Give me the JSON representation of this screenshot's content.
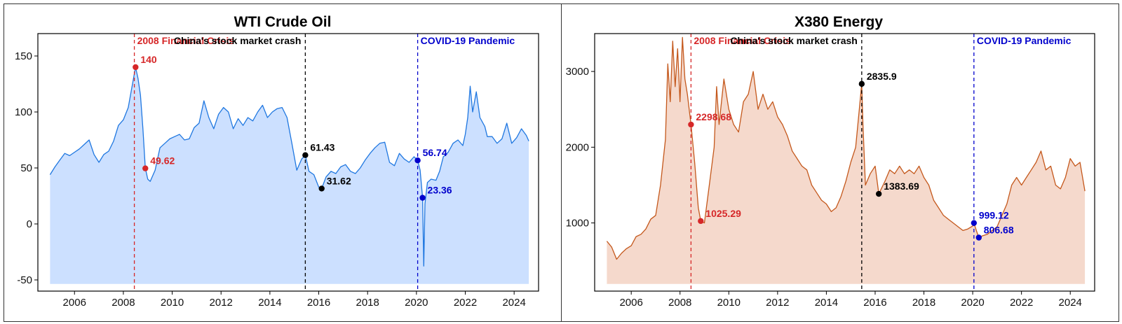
{
  "chart_data": [
    {
      "type": "area",
      "title": "WTI Crude Oil",
      "xlabel": "",
      "ylabel": "",
      "xlim": [
        2004.5,
        2025.0
      ],
      "ylim": [
        -60,
        170
      ],
      "xticks": [
        2006,
        2008,
        2010,
        2012,
        2014,
        2016,
        2018,
        2020,
        2022,
        2024
      ],
      "xtick_labels": [
        "2006",
        "2008",
        "2010",
        "2012",
        "2014",
        "2016",
        "2018",
        "2020",
        "2022",
        "2024"
      ],
      "yticks": [
        -50,
        0,
        50,
        100,
        150
      ],
      "ytick_labels": [
        "-50",
        "0",
        "50",
        "100",
        "150"
      ],
      "line_color": "#1f77e0",
      "fill_color": "#cce0ff",
      "series": [
        {
          "name": "WTI Crude Oil",
          "points": [
            [
              2005.0,
              44
            ],
            [
              2005.2,
              51
            ],
            [
              2005.4,
              57
            ],
            [
              2005.6,
              63
            ],
            [
              2005.8,
              61
            ],
            [
              2006.0,
              64
            ],
            [
              2006.2,
              67
            ],
            [
              2006.4,
              71
            ],
            [
              2006.6,
              75
            ],
            [
              2006.8,
              62
            ],
            [
              2007.0,
              55
            ],
            [
              2007.2,
              62
            ],
            [
              2007.4,
              65
            ],
            [
              2007.6,
              74
            ],
            [
              2007.8,
              88
            ],
            [
              2008.0,
              93
            ],
            [
              2008.2,
              104
            ],
            [
              2008.4,
              128
            ],
            [
              2008.5,
              140
            ],
            [
              2008.6,
              130
            ],
            [
              2008.7,
              115
            ],
            [
              2008.8,
              85
            ],
            [
              2008.9,
              50
            ],
            [
              2009.0,
              40
            ],
            [
              2009.1,
              38
            ],
            [
              2009.3,
              48
            ],
            [
              2009.5,
              68
            ],
            [
              2009.7,
              72
            ],
            [
              2009.9,
              76
            ],
            [
              2010.1,
              78
            ],
            [
              2010.3,
              80
            ],
            [
              2010.5,
              75
            ],
            [
              2010.7,
              76
            ],
            [
              2010.9,
              86
            ],
            [
              2011.1,
              90
            ],
            [
              2011.3,
              110
            ],
            [
              2011.5,
              95
            ],
            [
              2011.7,
              85
            ],
            [
              2011.9,
              98
            ],
            [
              2012.1,
              104
            ],
            [
              2012.3,
              100
            ],
            [
              2012.5,
              85
            ],
            [
              2012.7,
              94
            ],
            [
              2012.9,
              88
            ],
            [
              2013.1,
              95
            ],
            [
              2013.3,
              92
            ],
            [
              2013.5,
              100
            ],
            [
              2013.7,
              106
            ],
            [
              2013.9,
              95
            ],
            [
              2014.1,
              100
            ],
            [
              2014.3,
              103
            ],
            [
              2014.5,
              104
            ],
            [
              2014.7,
              95
            ],
            [
              2014.9,
              72
            ],
            [
              2015.1,
              48
            ],
            [
              2015.3,
              58
            ],
            [
              2015.45,
              61.43
            ],
            [
              2015.6,
              47
            ],
            [
              2015.8,
              44
            ],
            [
              2016.0,
              33
            ],
            [
              2016.12,
              31.62
            ],
            [
              2016.3,
              42
            ],
            [
              2016.5,
              47
            ],
            [
              2016.7,
              45
            ],
            [
              2016.9,
              51
            ],
            [
              2017.1,
              53
            ],
            [
              2017.3,
              47
            ],
            [
              2017.5,
              45
            ],
            [
              2017.7,
              50
            ],
            [
              2017.9,
              57
            ],
            [
              2018.1,
              63
            ],
            [
              2018.3,
              68
            ],
            [
              2018.5,
              72
            ],
            [
              2018.7,
              73
            ],
            [
              2018.9,
              55
            ],
            [
              2019.1,
              52
            ],
            [
              2019.3,
              63
            ],
            [
              2019.5,
              58
            ],
            [
              2019.7,
              55
            ],
            [
              2019.9,
              60
            ],
            [
              2020.05,
              56.74
            ],
            [
              2020.15,
              48
            ],
            [
              2020.25,
              23.36
            ],
            [
              2020.3,
              -37.6
            ],
            [
              2020.35,
              18
            ],
            [
              2020.45,
              37
            ],
            [
              2020.6,
              40
            ],
            [
              2020.8,
              39
            ],
            [
              2020.95,
              47
            ],
            [
              2021.1,
              60
            ],
            [
              2021.3,
              64
            ],
            [
              2021.5,
              72
            ],
            [
              2021.7,
              75
            ],
            [
              2021.9,
              70
            ],
            [
              2022.0,
              80
            ],
            [
              2022.1,
              95
            ],
            [
              2022.2,
              123
            ],
            [
              2022.3,
              100
            ],
            [
              2022.45,
              118
            ],
            [
              2022.6,
              95
            ],
            [
              2022.8,
              87
            ],
            [
              2022.9,
              78
            ],
            [
              2023.1,
              78
            ],
            [
              2023.3,
              72
            ],
            [
              2023.5,
              76
            ],
            [
              2023.7,
              90
            ],
            [
              2023.9,
              72
            ],
            [
              2024.1,
              77
            ],
            [
              2024.3,
              85
            ],
            [
              2024.5,
              79
            ],
            [
              2024.6,
              74
            ]
          ]
        }
      ],
      "events": [
        {
          "x": 2008.45,
          "label": "2008 Financial Crisis",
          "color": "#d62728",
          "label_align": "start"
        },
        {
          "x": 2015.45,
          "label": "China's stock market crash",
          "color": "#000000",
          "label_align": "end"
        },
        {
          "x": 2020.05,
          "label": "COVID-19 Pandemic",
          "color": "#0000cc",
          "label_align": "start"
        }
      ],
      "annotations": [
        {
          "x": 2008.5,
          "y": 140,
          "label": "140",
          "color": "#d62728"
        },
        {
          "x": 2008.9,
          "y": 49.62,
          "label": "49.62",
          "color": "#d62728"
        },
        {
          "x": 2015.45,
          "y": 61.43,
          "label": "61.43",
          "color": "#000000"
        },
        {
          "x": 2016.12,
          "y": 31.62,
          "label": "31.62",
          "color": "#000000"
        },
        {
          "x": 2020.05,
          "y": 56.74,
          "label": "56.74",
          "color": "#0000cc"
        },
        {
          "x": 2020.25,
          "y": 23.36,
          "label": "23.36",
          "color": "#0000cc"
        }
      ]
    },
    {
      "type": "area",
      "title": "X380 Energy",
      "xlabel": "",
      "ylabel": "",
      "xlim": [
        2004.5,
        2025.0
      ],
      "ylim": [
        100,
        3500
      ],
      "xticks": [
        2006,
        2008,
        2010,
        2012,
        2014,
        2016,
        2018,
        2020,
        2022,
        2024
      ],
      "xtick_labels": [
        "2006",
        "2008",
        "2010",
        "2012",
        "2014",
        "2016",
        "2018",
        "2020",
        "2022",
        "2024"
      ],
      "yticks": [
        1000,
        2000,
        3000
      ],
      "ytick_labels": [
        "1000",
        "2000",
        "3000"
      ],
      "line_color": "#c4581c",
      "fill_color": "#f5d9cc",
      "series": [
        {
          "name": "X380 Energy",
          "points": [
            [
              2005.0,
              760
            ],
            [
              2005.2,
              680
            ],
            [
              2005.4,
              520
            ],
            [
              2005.6,
              600
            ],
            [
              2005.8,
              660
            ],
            [
              2006.0,
              700
            ],
            [
              2006.2,
              820
            ],
            [
              2006.4,
              850
            ],
            [
              2006.6,
              920
            ],
            [
              2006.8,
              1050
            ],
            [
              2007.0,
              1100
            ],
            [
              2007.2,
              1500
            ],
            [
              2007.4,
              2100
            ],
            [
              2007.5,
              3100
            ],
            [
              2007.6,
              2600
            ],
            [
              2007.7,
              3400
            ],
            [
              2007.8,
              2800
            ],
            [
              2007.9,
              3300
            ],
            [
              2008.0,
              2600
            ],
            [
              2008.1,
              3450
            ],
            [
              2008.2,
              2900
            ],
            [
              2008.3,
              2700
            ],
            [
              2008.45,
              2298.68
            ],
            [
              2008.6,
              1800
            ],
            [
              2008.75,
              1200
            ],
            [
              2008.85,
              1025.29
            ],
            [
              2009.0,
              1000
            ],
            [
              2009.2,
              1500
            ],
            [
              2009.4,
              2000
            ],
            [
              2009.5,
              2800
            ],
            [
              2009.6,
              2300
            ],
            [
              2009.8,
              2900
            ],
            [
              2010.0,
              2500
            ],
            [
              2010.2,
              2300
            ],
            [
              2010.4,
              2200
            ],
            [
              2010.6,
              2600
            ],
            [
              2010.8,
              2700
            ],
            [
              2011.0,
              3000
            ],
            [
              2011.2,
              2500
            ],
            [
              2011.4,
              2700
            ],
            [
              2011.6,
              2500
            ],
            [
              2011.8,
              2600
            ],
            [
              2012.0,
              2400
            ],
            [
              2012.2,
              2300
            ],
            [
              2012.4,
              2150
            ],
            [
              2012.6,
              1950
            ],
            [
              2012.8,
              1850
            ],
            [
              2013.0,
              1750
            ],
            [
              2013.2,
              1700
            ],
            [
              2013.4,
              1500
            ],
            [
              2013.6,
              1400
            ],
            [
              2013.8,
              1300
            ],
            [
              2014.0,
              1250
            ],
            [
              2014.2,
              1150
            ],
            [
              2014.4,
              1200
            ],
            [
              2014.6,
              1350
            ],
            [
              2014.8,
              1550
            ],
            [
              2015.0,
              1800
            ],
            [
              2015.2,
              2000
            ],
            [
              2015.35,
              2500
            ],
            [
              2015.45,
              2835.9
            ],
            [
              2015.5,
              2300
            ],
            [
              2015.6,
              1500
            ],
            [
              2015.8,
              1650
            ],
            [
              2016.0,
              1750
            ],
            [
              2016.15,
              1383.69
            ],
            [
              2016.4,
              1550
            ],
            [
              2016.6,
              1700
            ],
            [
              2016.8,
              1650
            ],
            [
              2017.0,
              1750
            ],
            [
              2017.2,
              1650
            ],
            [
              2017.4,
              1700
            ],
            [
              2017.6,
              1650
            ],
            [
              2017.8,
              1750
            ],
            [
              2018.0,
              1600
            ],
            [
              2018.2,
              1500
            ],
            [
              2018.4,
              1300
            ],
            [
              2018.6,
              1200
            ],
            [
              2018.8,
              1100
            ],
            [
              2019.0,
              1050
            ],
            [
              2019.2,
              1000
            ],
            [
              2019.4,
              950
            ],
            [
              2019.6,
              900
            ],
            [
              2019.8,
              920
            ],
            [
              2020.0,
              960
            ],
            [
              2020.05,
              999.12
            ],
            [
              2020.15,
              900
            ],
            [
              2020.25,
              806.68
            ],
            [
              2020.4,
              830
            ],
            [
              2020.6,
              850
            ],
            [
              2020.8,
              900
            ],
            [
              2021.0,
              950
            ],
            [
              2021.2,
              1100
            ],
            [
              2021.4,
              1250
            ],
            [
              2021.6,
              1500
            ],
            [
              2021.8,
              1600
            ],
            [
              2022.0,
              1500
            ],
            [
              2022.2,
              1600
            ],
            [
              2022.4,
              1700
            ],
            [
              2022.6,
              1800
            ],
            [
              2022.8,
              1950
            ],
            [
              2023.0,
              1700
            ],
            [
              2023.2,
              1750
            ],
            [
              2023.4,
              1500
            ],
            [
              2023.6,
              1450
            ],
            [
              2023.8,
              1600
            ],
            [
              2024.0,
              1850
            ],
            [
              2024.2,
              1750
            ],
            [
              2024.4,
              1800
            ],
            [
              2024.6,
              1420
            ]
          ]
        }
      ],
      "events": [
        {
          "x": 2008.45,
          "label": "2008 Financial Crisis",
          "color": "#d62728",
          "label_align": "start"
        },
        {
          "x": 2015.45,
          "label": "China's stock market crash",
          "color": "#000000",
          "label_align": "end"
        },
        {
          "x": 2020.05,
          "label": "COVID-19 Pandemic",
          "color": "#0000cc",
          "label_align": "start"
        }
      ],
      "annotations": [
        {
          "x": 2008.45,
          "y": 2298.68,
          "label": "2298.68",
          "color": "#d62728"
        },
        {
          "x": 2008.85,
          "y": 1025.29,
          "label": "1025.29",
          "color": "#d62728"
        },
        {
          "x": 2015.45,
          "y": 2835.9,
          "label": "2835.9",
          "color": "#000000"
        },
        {
          "x": 2016.15,
          "y": 1383.69,
          "label": "1383.69",
          "color": "#000000"
        },
        {
          "x": 2020.05,
          "y": 999.12,
          "label": "999.12",
          "color": "#0000cc"
        },
        {
          "x": 2020.25,
          "y": 806.68,
          "label": "806.68",
          "color": "#0000cc"
        }
      ]
    }
  ]
}
